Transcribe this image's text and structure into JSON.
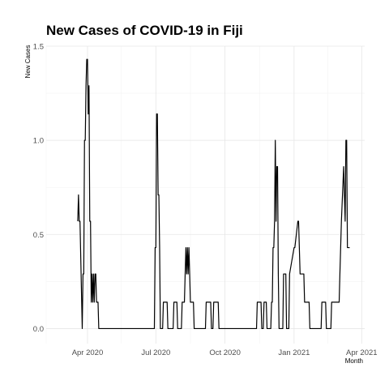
{
  "chart_data": {
    "type": "line",
    "title": "New Cases of COVID-19 in Fiji",
    "xlabel": "Month",
    "ylabel": "New Cases",
    "x_ticks": [
      {
        "date": "2020-04-01",
        "label": "Apr 2020"
      },
      {
        "date": "2020-07-01",
        "label": "Jul 2020"
      },
      {
        "date": "2020-10-01",
        "label": "Oct 2020"
      },
      {
        "date": "2021-01-01",
        "label": "Jan 2021"
      },
      {
        "date": "2021-04-01",
        "label": "Apr 2021"
      }
    ],
    "y_ticks": [
      {
        "value": 0,
        "label": "0.0"
      },
      {
        "value": 0.5,
        "label": "0.5"
      },
      {
        "value": 1.0,
        "label": "1.0"
      },
      {
        "value": 1.5,
        "label": "1.5"
      }
    ],
    "xlim": [
      "2020-02-06",
      "2021-04-05"
    ],
    "ylim": [
      -0.08,
      1.5
    ],
    "grid": true,
    "series": [
      {
        "color": "#000000",
        "x": [
          "2020-03-19",
          "2020-03-20",
          "2020-03-21",
          "2020-03-22",
          "2020-03-25",
          "2020-03-26",
          "2020-03-27",
          "2020-03-28",
          "2020-03-29",
          "2020-03-30",
          "2020-03-31",
          "2020-04-01",
          "2020-04-02",
          "2020-04-03",
          "2020-04-04",
          "2020-04-05",
          "2020-04-06",
          "2020-04-07",
          "2020-04-08",
          "2020-04-09",
          "2020-04-10",
          "2020-04-11",
          "2020-04-12",
          "2020-04-13",
          "2020-04-15",
          "2020-04-16",
          "2020-04-17",
          "2020-04-18",
          "2020-04-20",
          "2020-04-21",
          "2020-06-29",
          "2020-06-30",
          "2020-07-01",
          "2020-07-02",
          "2020-07-03",
          "2020-07-04",
          "2020-07-05",
          "2020-07-06",
          "2020-07-07",
          "2020-07-10",
          "2020-07-11",
          "2020-07-12",
          "2020-07-16",
          "2020-07-17",
          "2020-07-24",
          "2020-07-25",
          "2020-07-29",
          "2020-07-30",
          "2020-08-04",
          "2020-08-05",
          "2020-08-08",
          "2020-08-09",
          "2020-08-10",
          "2020-08-11",
          "2020-08-12",
          "2020-08-13",
          "2020-08-14",
          "2020-08-15",
          "2020-08-16",
          "2020-08-17",
          "2020-08-20",
          "2020-08-21",
          "2020-09-05",
          "2020-09-06",
          "2020-09-12",
          "2020-09-13",
          "2020-09-15",
          "2020-09-16",
          "2020-09-22",
          "2020-09-23",
          "2020-11-12",
          "2020-11-13",
          "2020-11-18",
          "2020-11-19",
          "2020-11-21",
          "2020-11-22",
          "2020-11-25",
          "2020-11-26",
          "2020-12-01",
          "2020-12-02",
          "2020-12-03",
          "2020-12-04",
          "2020-12-05",
          "2020-12-06",
          "2020-12-07",
          "2020-12-08",
          "2020-12-09",
          "2020-12-10",
          "2020-12-11",
          "2020-12-12",
          "2020-12-17",
          "2020-12-18",
          "2020-12-21",
          "2020-12-22",
          "2020-12-25",
          "2020-12-26",
          "2021-01-01",
          "2021-01-02",
          "2021-01-06",
          "2021-01-07",
          "2021-01-08",
          "2021-01-09",
          "2021-01-14",
          "2021-01-15",
          "2021-01-21",
          "2021-01-22",
          "2021-02-06",
          "2021-02-07",
          "2021-02-12",
          "2021-02-13",
          "2021-02-19",
          "2021-02-20",
          "2021-03-02",
          "2021-03-03",
          "2021-03-04",
          "2021-03-05",
          "2021-03-08",
          "2021-03-09",
          "2021-03-10",
          "2021-03-11",
          "2021-03-12",
          "2021-03-13",
          "2021-03-14",
          "2021-03-15",
          "2021-03-16"
        ],
        "y": [
          0.57,
          0.71,
          0.57,
          0.57,
          0.0,
          0.29,
          0.29,
          1.0,
          1.0,
          1.29,
          1.43,
          1.43,
          1.14,
          1.29,
          0.57,
          0.57,
          0.14,
          0.29,
          0.14,
          0.29,
          0.14,
          0.29,
          0.29,
          0.14,
          0.14,
          0.0,
          0.0,
          0.0,
          0.0,
          0.0,
          0.0,
          0.43,
          0.43,
          1.14,
          1.14,
          0.71,
          0.71,
          0.43,
          0.0,
          0.0,
          0.14,
          0.14,
          0.14,
          0.0,
          0.0,
          0.14,
          0.14,
          0.0,
          0.0,
          0.14,
          0.14,
          0.29,
          0.43,
          0.29,
          0.43,
          0.29,
          0.43,
          0.29,
          0.14,
          0.14,
          0.14,
          0.0,
          0.0,
          0.14,
          0.14,
          0.0,
          0.0,
          0.14,
          0.14,
          0.0,
          0.0,
          0.14,
          0.14,
          0.0,
          0.0,
          0.14,
          0.14,
          0.0,
          0.0,
          0.14,
          0.14,
          0.43,
          0.43,
          0.57,
          1.0,
          0.57,
          0.86,
          0.86,
          0.29,
          0.0,
          0.0,
          0.29,
          0.29,
          0.0,
          0.0,
          0.29,
          0.43,
          0.43,
          0.57,
          0.57,
          0.43,
          0.29,
          0.29,
          0.14,
          0.14,
          0.0,
          0.0,
          0.14,
          0.14,
          0.0,
          0.0,
          0.14,
          0.14,
          0.29,
          0.43,
          0.57,
          0.86,
          0.71,
          0.57,
          1.0,
          1.0,
          0.43,
          0.43,
          0.43,
          0.43
        ]
      }
    ]
  }
}
